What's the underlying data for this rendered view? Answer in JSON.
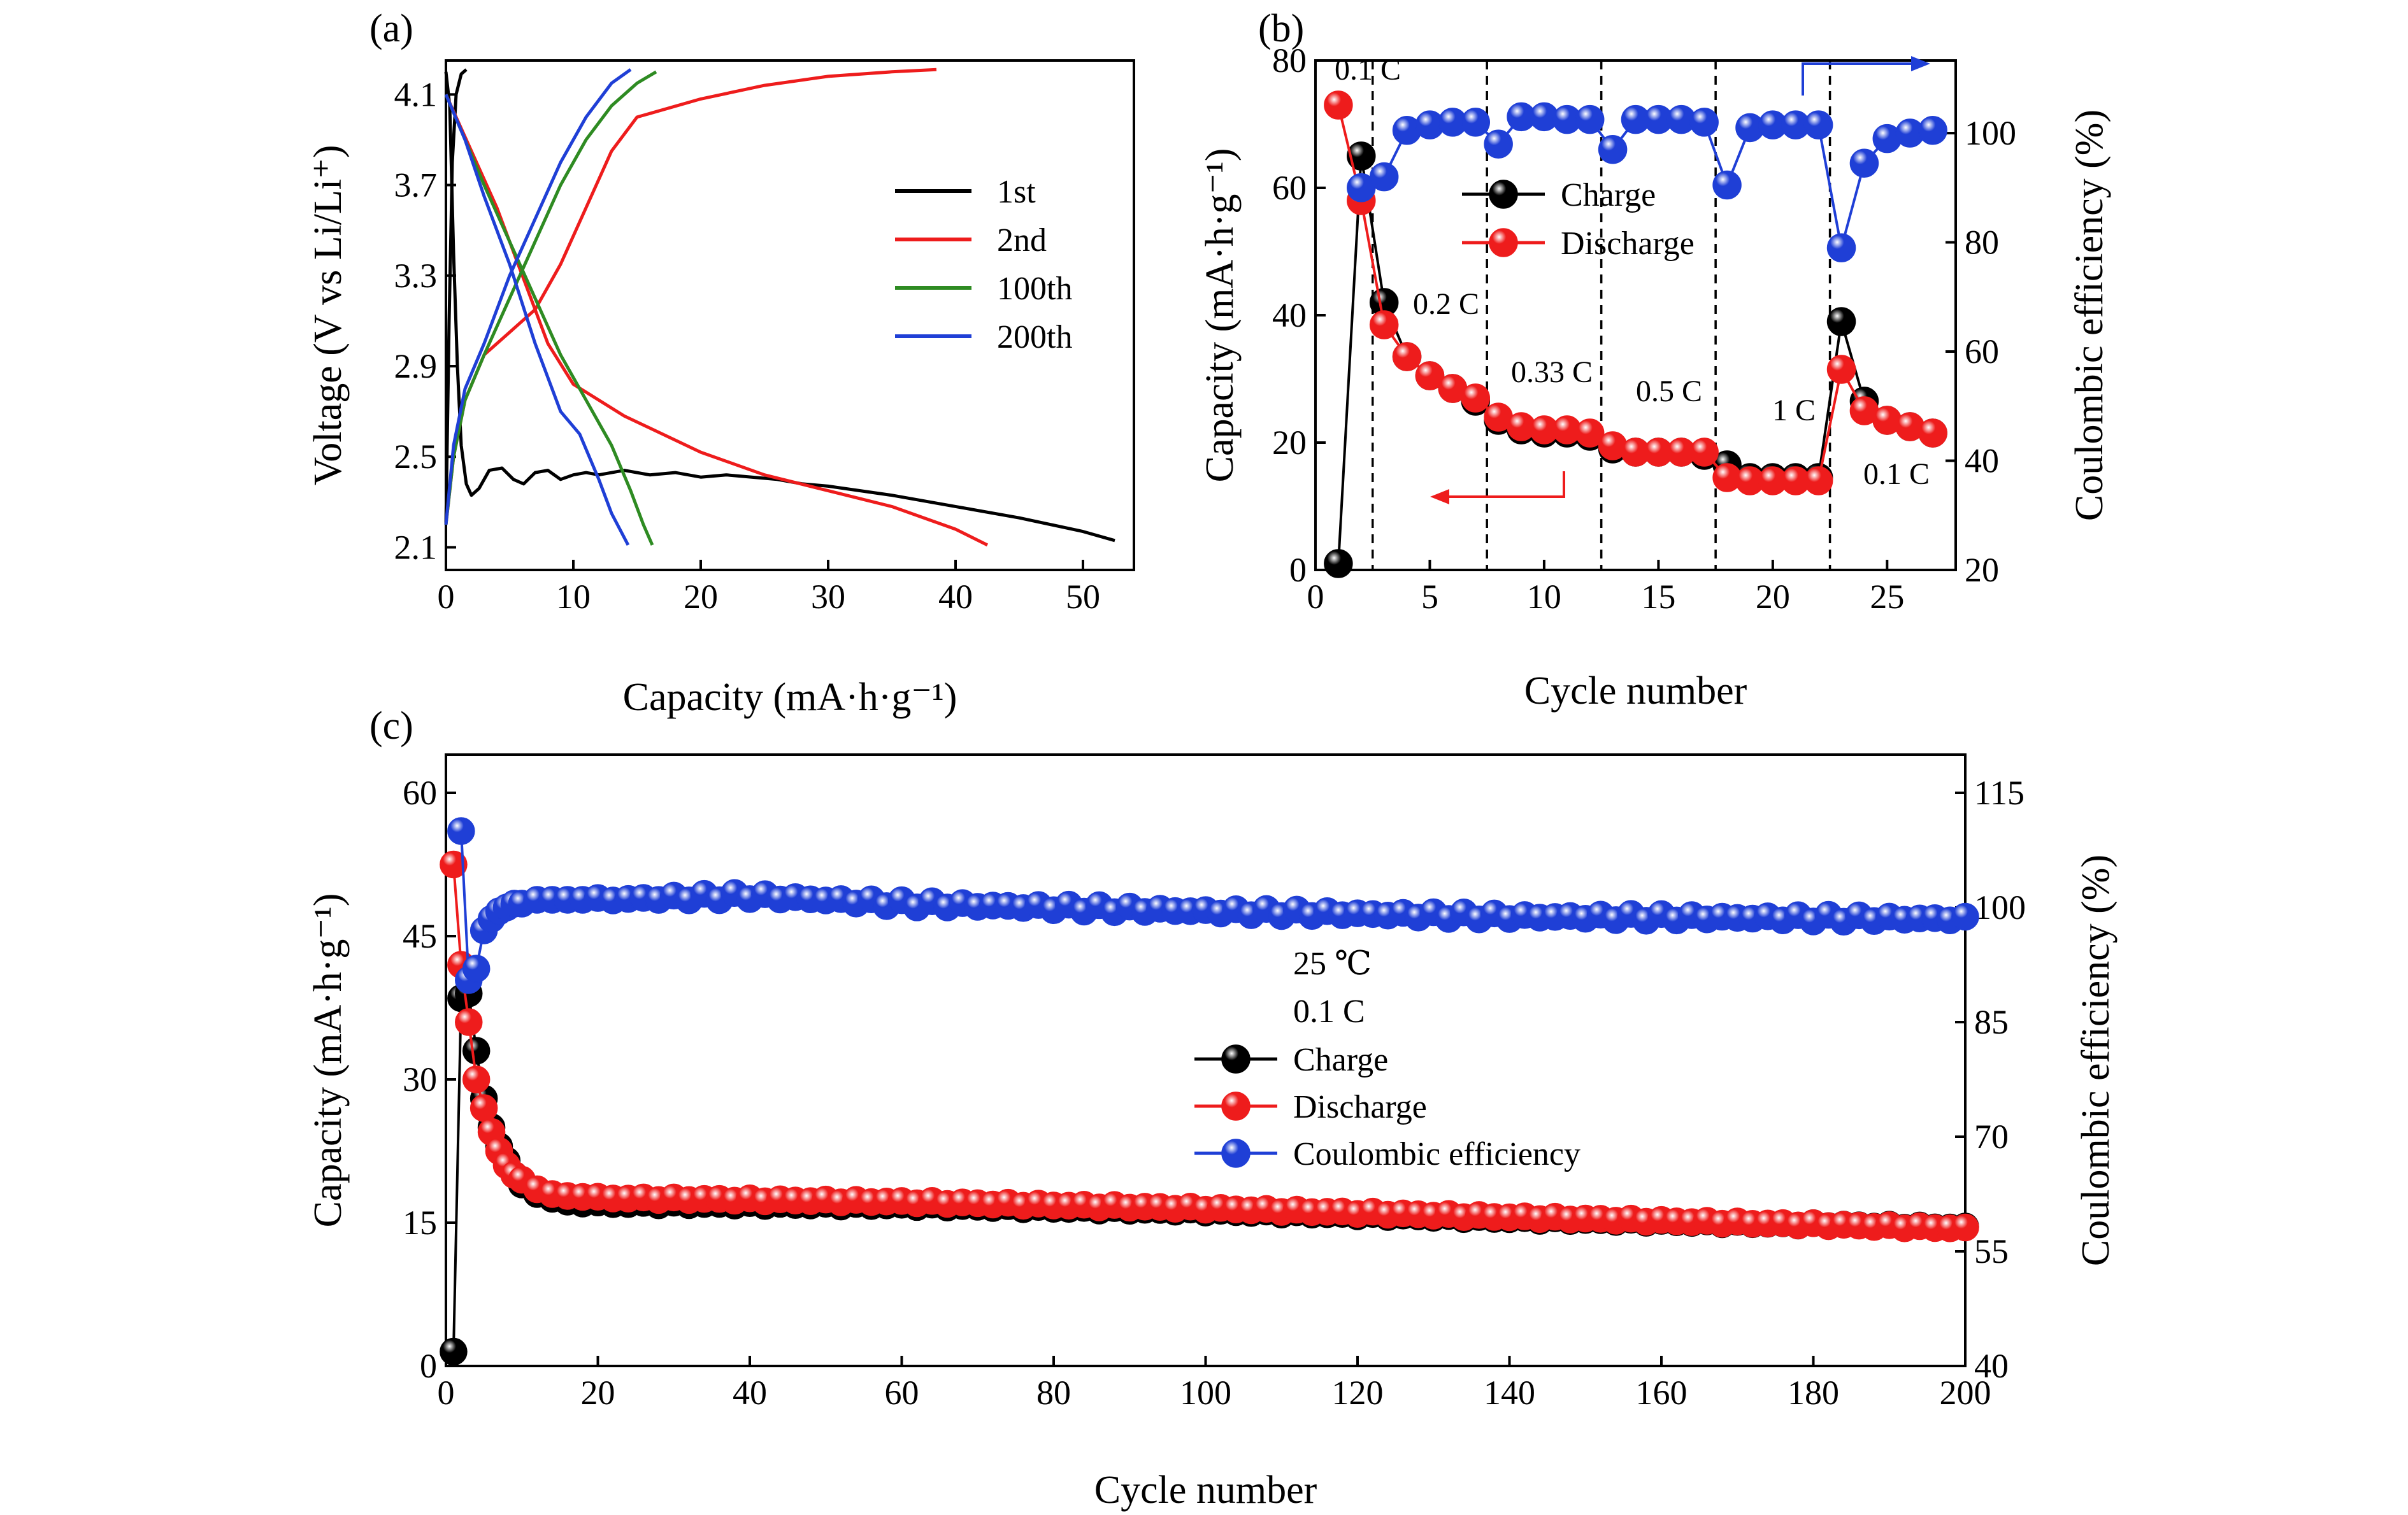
{
  "chart_data": [
    {
      "panel": "(a)",
      "type": "line",
      "xlabel": "Capacity (mA·h·g⁻¹)",
      "ylabel": "Voltage (V vs Li/Li⁺)",
      "xlim": [
        0,
        54
      ],
      "ylim": [
        2.0,
        4.25
      ],
      "xticks": [
        0,
        10,
        20,
        30,
        40,
        50
      ],
      "yticks": [
        2.1,
        2.5,
        2.9,
        3.3,
        3.7,
        4.1
      ],
      "xtick_labels": [
        "0",
        "10",
        "20",
        "30",
        "40",
        "50"
      ],
      "ytick_labels": [
        "2.1",
        "2.5",
        "2.9",
        "3.3",
        "3.7",
        "4.1"
      ],
      "legend_position": "right",
      "series": [
        {
          "name": "1st",
          "color": "#000000",
          "segments": [
            [
              [
                0,
                4.2
              ],
              [
                0.3,
                4.05
              ],
              [
                0.6,
                3.4
              ],
              [
                0.9,
                2.9
              ],
              [
                1.2,
                2.55
              ],
              [
                1.6,
                2.38
              ],
              [
                2.0,
                2.33
              ],
              [
                2.6,
                2.36
              ],
              [
                3.4,
                2.44
              ],
              [
                4.4,
                2.45
              ],
              [
                5.3,
                2.4
              ],
              [
                6.1,
                2.38
              ],
              [
                7.0,
                2.43
              ],
              [
                8.0,
                2.44
              ],
              [
                9.0,
                2.4
              ],
              [
                10.0,
                2.42
              ],
              [
                11.0,
                2.43
              ],
              [
                12.0,
                2.42
              ],
              [
                14.0,
                2.44
              ],
              [
                16.0,
                2.42
              ],
              [
                18.0,
                2.43
              ],
              [
                20.0,
                2.41
              ],
              [
                22.0,
                2.42
              ],
              [
                24.0,
                2.41
              ],
              [
                26.0,
                2.4
              ],
              [
                28.0,
                2.38
              ],
              [
                30.0,
                2.37
              ],
              [
                35.0,
                2.33
              ],
              [
                40.0,
                2.28
              ],
              [
                45.0,
                2.23
              ],
              [
                50.0,
                2.17
              ],
              [
                52.5,
                2.13
              ]
            ],
            [
              [
                0,
                2.2
              ],
              [
                0.25,
                3.1
              ],
              [
                0.5,
                3.8
              ],
              [
                0.8,
                4.1
              ],
              [
                1.2,
                4.19
              ],
              [
                1.6,
                4.21
              ]
            ]
          ]
        },
        {
          "name": "2nd",
          "color": "#ee1c1c",
          "segments": [
            [
              [
                0,
                2.2
              ],
              [
                0.6,
                2.5
              ],
              [
                1.5,
                2.75
              ],
              [
                3.0,
                2.95
              ],
              [
                5.0,
                3.05
              ],
              [
                7.0,
                3.15
              ],
              [
                9.0,
                3.35
              ],
              [
                11.0,
                3.6
              ],
              [
                13.0,
                3.85
              ],
              [
                15.0,
                4.0
              ],
              [
                20.0,
                4.08
              ],
              [
                25.0,
                4.14
              ],
              [
                30.0,
                4.18
              ],
              [
                35.0,
                4.2
              ],
              [
                38.5,
                4.21
              ]
            ],
            [
              [
                0,
                4.1
              ],
              [
                2.0,
                3.85
              ],
              [
                4.0,
                3.6
              ],
              [
                6.0,
                3.3
              ],
              [
                8.0,
                3.0
              ],
              [
                10.0,
                2.82
              ],
              [
                14.0,
                2.68
              ],
              [
                20.0,
                2.52
              ],
              [
                25.0,
                2.42
              ],
              [
                30.0,
                2.35
              ],
              [
                35.0,
                2.28
              ],
              [
                40.0,
                2.18
              ],
              [
                42.5,
                2.11
              ]
            ]
          ]
        },
        {
          "name": "100th",
          "color": "#2e8b22",
          "segments": [
            [
              [
                0,
                2.2
              ],
              [
                0.6,
                2.5
              ],
              [
                1.5,
                2.75
              ],
              [
                3.0,
                2.95
              ],
              [
                5.0,
                3.2
              ],
              [
                7.0,
                3.45
              ],
              [
                9.0,
                3.7
              ],
              [
                11.0,
                3.9
              ],
              [
                13.0,
                4.05
              ],
              [
                15.0,
                4.15
              ],
              [
                16.5,
                4.2
              ]
            ],
            [
              [
                0,
                4.1
              ],
              [
                1.5,
                3.9
              ],
              [
                3.0,
                3.7
              ],
              [
                5.0,
                3.45
              ],
              [
                7.0,
                3.2
              ],
              [
                9.0,
                2.95
              ],
              [
                11.0,
                2.75
              ],
              [
                13.0,
                2.55
              ],
              [
                14.5,
                2.35
              ],
              [
                15.5,
                2.2
              ],
              [
                16.2,
                2.11
              ]
            ]
          ]
        },
        {
          "name": "200th",
          "color": "#1f3fd6",
          "segments": [
            [
              [
                0,
                2.2
              ],
              [
                0.6,
                2.55
              ],
              [
                1.5,
                2.8
              ],
              [
                3.0,
                3.0
              ],
              [
                5.0,
                3.3
              ],
              [
                7.0,
                3.55
              ],
              [
                9.0,
                3.8
              ],
              [
                11.0,
                4.0
              ],
              [
                13.0,
                4.15
              ],
              [
                14.5,
                4.21
              ]
            ],
            [
              [
                0,
                4.1
              ],
              [
                1.5,
                3.9
              ],
              [
                3.0,
                3.65
              ],
              [
                5.0,
                3.35
              ],
              [
                7.0,
                3.0
              ],
              [
                9.0,
                2.7
              ],
              [
                10.5,
                2.6
              ],
              [
                12.0,
                2.4
              ],
              [
                13.0,
                2.25
              ],
              [
                14.3,
                2.11
              ]
            ]
          ]
        }
      ]
    },
    {
      "panel": "(b)",
      "type": "scatter",
      "xlabel": "Cycle number",
      "ylabel": "Capacity (mA·h·g⁻¹)",
      "y2label": "Coulombic efficiency (%)",
      "xlim": [
        0,
        28
      ],
      "ylim": [
        0,
        80
      ],
      "y2lim": [
        20,
        113.3
      ],
      "xticks": [
        0,
        5,
        10,
        15,
        20,
        25
      ],
      "yticks": [
        0,
        20,
        40,
        60,
        80
      ],
      "y2ticks": [
        20,
        40,
        60,
        80,
        100
      ],
      "xtick_labels": [
        "0",
        "5",
        "10",
        "15",
        "20",
        "25"
      ],
      "ytick_labels": [
        "0",
        "20",
        "40",
        "60",
        "80"
      ],
      "y2tick_labels": [
        "20",
        "40",
        "60",
        "80",
        "100"
      ],
      "rate_boundaries": [
        2.5,
        7.5,
        12.5,
        17.5,
        22.5
      ],
      "rate_labels": [
        "0.1 C",
        "0.2 C",
        "0.33 C",
        "0.5 C",
        "1 C",
        "0.1 C"
      ],
      "legend_position": "upper-left",
      "x": [
        1,
        2,
        3,
        4,
        5,
        6,
        7,
        8,
        9,
        10,
        11,
        12,
        13,
        14,
        15,
        16,
        17,
        18,
        19,
        20,
        21,
        22,
        23,
        24,
        25,
        26,
        27
      ],
      "series": [
        {
          "name": "Charge",
          "color": "#000000",
          "axis": "left",
          "values": [
            1,
            65,
            42,
            33.5,
            30.5,
            28.5,
            26.5,
            23.5,
            22,
            21.5,
            21.5,
            21,
            19,
            18.5,
            18.5,
            18.5,
            18,
            16.5,
            14.5,
            14.5,
            14.5,
            14.5,
            39,
            26.5,
            23.5,
            22.5,
            21.5
          ]
        },
        {
          "name": "Discharge",
          "color": "#ee1c1c",
          "axis": "left",
          "values": [
            73,
            58,
            38.5,
            33.5,
            30.5,
            28.5,
            27,
            24,
            22.5,
            22,
            22,
            21.5,
            19.5,
            18.5,
            18.5,
            18.5,
            18.5,
            14.5,
            14,
            14,
            14,
            14,
            31.5,
            25,
            23.5,
            22.5,
            21.5
          ]
        },
        {
          "name": "Coulombic efficiency",
          "color": "#1f3fd6",
          "axis": "right",
          "values": [
            null,
            90,
            92,
            100.5,
            101.5,
            102,
            102,
            98,
            103,
            103,
            102.5,
            102.5,
            97,
            102.5,
            102.5,
            102.5,
            102,
            90.5,
            101,
            101.5,
            101.5,
            101.5,
            79,
            94.5,
            99,
            100,
            100.5
          ]
        }
      ]
    },
    {
      "panel": "(c)",
      "type": "scatter",
      "xlabel": "Cycle number",
      "ylabel": "Capacity (mA·h·g⁻¹)",
      "y2label": "Coulombic efficiency (%)",
      "xlim": [
        0,
        200
      ],
      "ylim": [
        0,
        64
      ],
      "y2lim": [
        40,
        120
      ],
      "xticks": [
        0,
        20,
        40,
        60,
        80,
        100,
        120,
        140,
        160,
        180,
        200
      ],
      "yticks": [
        0,
        15,
        30,
        45,
        60
      ],
      "y2ticks": [
        40,
        55,
        70,
        85,
        100,
        115
      ],
      "xtick_labels": [
        "0",
        "20",
        "40",
        "60",
        "80",
        "100",
        "120",
        "140",
        "160",
        "180",
        "200"
      ],
      "ytick_labels": [
        "0",
        "15",
        "30",
        "45",
        "60"
      ],
      "y2tick_labels": [
        "40",
        "55",
        "70",
        "85",
        "100",
        "115"
      ],
      "conditions": [
        "25 ℃",
        "0.1 C"
      ],
      "legend_position": "center",
      "series": [
        {
          "name": "Charge",
          "color": "#000000",
          "axis": "left",
          "early": [
            [
              1,
              1.5
            ],
            [
              2,
              38.5
            ],
            [
              3,
              39
            ],
            [
              4,
              33
            ],
            [
              5,
              28
            ],
            [
              6,
              25
            ],
            [
              7,
              23
            ],
            [
              8,
              21.5
            ],
            [
              9,
              20
            ],
            [
              10,
              19
            ],
            [
              12,
              18
            ],
            [
              14,
              17.5
            ],
            [
              16,
              17.2
            ],
            [
              18,
              17
            ]
          ],
          "trend": [
            [
              20,
              17
            ],
            [
              60,
              16.8
            ],
            [
              100,
              16.2
            ],
            [
              140,
              15.4
            ],
            [
              200,
              14.5
            ]
          ]
        },
        {
          "name": "Discharge",
          "color": "#ee1c1c",
          "axis": "left",
          "early": [
            [
              1,
              52.5
            ],
            [
              2,
              42
            ],
            [
              3,
              36
            ],
            [
              4,
              30
            ],
            [
              5,
              27
            ],
            [
              6,
              24.5
            ],
            [
              7,
              22.5
            ],
            [
              8,
              21
            ],
            [
              9,
              20
            ],
            [
              10,
              19.5
            ],
            [
              12,
              18.5
            ],
            [
              14,
              18
            ],
            [
              16,
              17.8
            ],
            [
              18,
              17.7
            ]
          ],
          "trend": [
            [
              20,
              17.6
            ],
            [
              60,
              17.2
            ],
            [
              100,
              16.5
            ],
            [
              140,
              15.6
            ],
            [
              200,
              14.4
            ]
          ]
        },
        {
          "name": "Coulombic efficiency",
          "color": "#1f3fd6",
          "axis": "right",
          "early": [
            [
              2,
              110
            ],
            [
              3,
              90.5
            ],
            [
              4,
              92
            ],
            [
              5,
              97
            ],
            [
              6,
              98.5
            ],
            [
              7,
              99.5
            ],
            [
              8,
              100
            ],
            [
              9,
              100.5
            ],
            [
              10,
              100.5
            ],
            [
              12,
              101
            ],
            [
              14,
              101
            ],
            [
              16,
              101
            ],
            [
              18,
              101
            ]
          ],
          "trend": [
            [
              20,
              101
            ],
            [
              40,
              101.5
            ],
            [
              60,
              100.5
            ],
            [
              100,
              99.5
            ],
            [
              140,
              98.8
            ],
            [
              200,
              98.5
            ]
          ]
        }
      ]
    }
  ]
}
